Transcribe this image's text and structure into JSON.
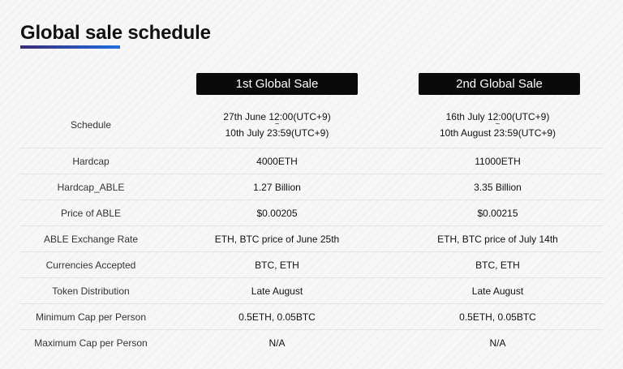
{
  "title": "Global sale schedule",
  "colors": {
    "title_bar_start": "#3a2a7a",
    "title_bar_end": "#1f6fe0",
    "header_bg": "#0a0a0a"
  },
  "headers": [
    "1st Global Sale",
    "2nd Global Sale"
  ],
  "rows": [
    {
      "label": "Schedule",
      "v1": {
        "start": "27th June 12:00(UTC+9)",
        "sep": "~",
        "end": "10th July 23:59(UTC+9)"
      },
      "v2": {
        "start": "16th July 12:00(UTC+9)",
        "sep": "~",
        "end": "10th August 23:59(UTC+9)"
      }
    },
    {
      "label": "Hardcap",
      "v1": "4000ETH",
      "v2": "11000ETH"
    },
    {
      "label": "Hardcap_ABLE",
      "v1": "1.27 Billion",
      "v2": "3.35 Billion"
    },
    {
      "label": "Price of ABLE",
      "v1": "$0.00205",
      "v2": "$0.00215"
    },
    {
      "label": "ABLE Exchange Rate",
      "v1": "ETH, BTC price of June 25th",
      "v2": "ETH, BTC price of July 14th"
    },
    {
      "label": "Currencies Accepted",
      "v1": "BTC, ETH",
      "v2": "BTC, ETH"
    },
    {
      "label": "Token Distribution",
      "v1": "Late August",
      "v2": "Late August"
    },
    {
      "label": "Minimum Cap per Person",
      "v1": "0.5ETH, 0.05BTC",
      "v2": "0.5ETH, 0.05BTC"
    },
    {
      "label": "Maximum Cap per Person",
      "v1": "N/A",
      "v2": "N/A"
    }
  ]
}
